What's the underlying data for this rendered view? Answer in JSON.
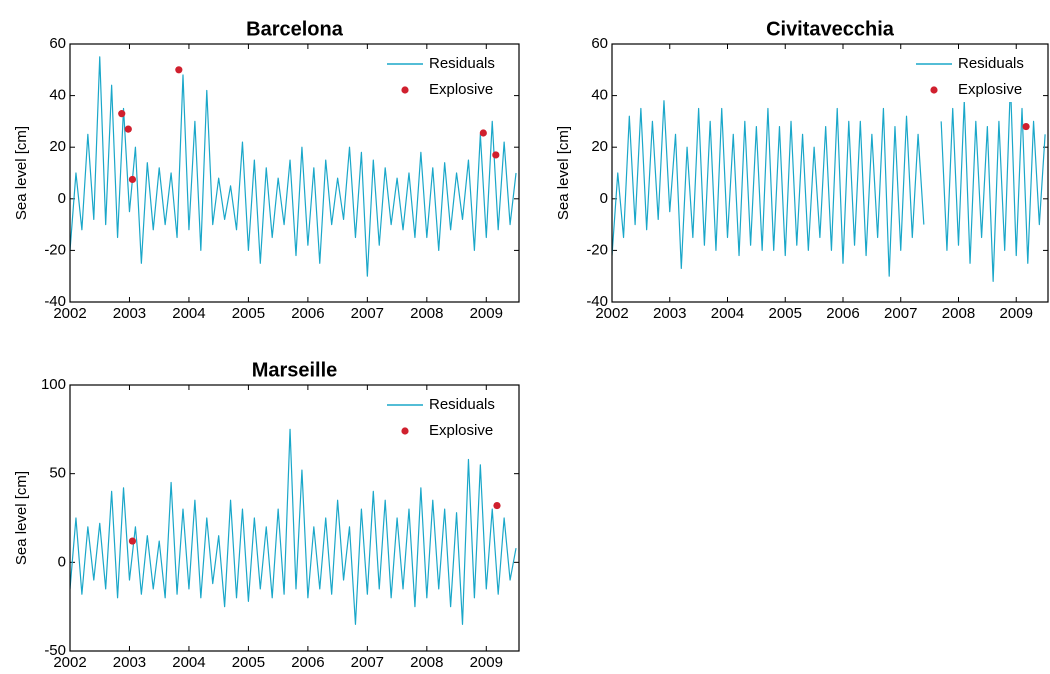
{
  "chart_data": [
    {
      "type": "line",
      "title": "Barcelona",
      "ylabel": "Sea level [cm]",
      "x": [
        2002.0,
        2002.1,
        2002.2,
        2002.3,
        2002.4,
        2002.5,
        2002.6,
        2002.7,
        2002.8,
        2002.9,
        2003.0,
        2003.1,
        2003.2,
        2003.3,
        2003.4,
        2003.5,
        2003.6,
        2003.7,
        2003.8,
        2003.9,
        2004.0,
        2004.1,
        2004.2,
        2004.3,
        2004.4,
        2004.5,
        2004.6,
        2004.7,
        2004.8,
        2004.9,
        2005.0,
        2005.1,
        2005.2,
        2005.3,
        2005.4,
        2005.5,
        2005.6,
        2005.7,
        2005.8,
        2005.9,
        2006.0,
        2006.1,
        2006.2,
        2006.3,
        2006.4,
        2006.5,
        2006.6,
        2006.7,
        2006.8,
        2006.9,
        2007.0,
        2007.1,
        2007.2,
        2007.3,
        2007.4,
        2007.5,
        2007.6,
        2007.7,
        2007.8,
        2007.9,
        2008.0,
        2008.1,
        2008.2,
        2008.3,
        2008.4,
        2008.5,
        2008.6,
        2008.7,
        2008.8,
        2008.9,
        2009.0,
        2009.1,
        2009.2,
        2009.3,
        2009.4,
        2009.5
      ],
      "series": [
        {
          "name": "Residuals",
          "type": "line",
          "color": "#1aa7c9",
          "values": [
            -20,
            10,
            -12,
            25,
            -8,
            55,
            -10,
            44,
            -15,
            35,
            -5,
            20,
            -25,
            14,
            -12,
            12,
            -10,
            10,
            -15,
            48,
            -12,
            30,
            -20,
            42,
            -10,
            8,
            -8,
            5,
            -12,
            22,
            -20,
            15,
            -25,
            12,
            -15,
            8,
            -10,
            15,
            -22,
            20,
            -18,
            12,
            -25,
            15,
            -10,
            8,
            -8,
            20,
            -15,
            18,
            -30,
            15,
            -18,
            12,
            -10,
            8,
            -12,
            10,
            -15,
            18,
            -15,
            12,
            -20,
            14,
            -12,
            10,
            -8,
            15,
            -20,
            25,
            -15,
            30,
            -12,
            22,
            -10,
            10
          ]
        },
        {
          "name": "Explosive",
          "type": "scatter",
          "color": "#d0202e",
          "x": [
            2002.87,
            2002.98,
            2003.05,
            2003.83,
            2008.95,
            2009.16
          ],
          "values": [
            33,
            27,
            7.5,
            50,
            25.5,
            17
          ]
        }
      ],
      "xlim": [
        2002,
        2009.55
      ],
      "xticks": [
        2002,
        2003,
        2004,
        2005,
        2006,
        2007,
        2008,
        2009
      ],
      "ylim": [
        -40,
        60
      ],
      "yticks": [
        -40,
        -20,
        0,
        20,
        40,
        60
      ],
      "legend": "upper right"
    },
    {
      "type": "line",
      "title": "Civitavecchia",
      "ylabel": "Sea level [cm]",
      "x": [
        2002.0,
        2002.1,
        2002.2,
        2002.3,
        2002.4,
        2002.5,
        2002.6,
        2002.7,
        2002.8,
        2002.9,
        2003.0,
        2003.1,
        2003.2,
        2003.3,
        2003.4,
        2003.5,
        2003.6,
        2003.7,
        2003.8,
        2003.9,
        2004.0,
        2004.1,
        2004.2,
        2004.3,
        2004.4,
        2004.5,
        2004.6,
        2004.7,
        2004.8,
        2004.9,
        2005.0,
        2005.1,
        2005.2,
        2005.3,
        2005.4,
        2005.5,
        2005.6,
        2005.7,
        2005.8,
        2005.9,
        2006.0,
        2006.1,
        2006.2,
        2006.3,
        2006.4,
        2006.5,
        2006.6,
        2006.7,
        2006.8,
        2006.9,
        2007.0,
        2007.1,
        2007.2,
        2007.3,
        2007.4,
        2007.5,
        2007.6,
        2007.7,
        2007.8,
        2007.9,
        2008.0,
        2008.1,
        2008.2,
        2008.3,
        2008.4,
        2008.5,
        2008.6,
        2008.7,
        2008.8,
        2008.9,
        2009.0,
        2009.1,
        2009.2,
        2009.3,
        2009.4,
        2009.5
      ],
      "series": [
        {
          "name": "Residuals",
          "type": "line",
          "color": "#1aa7c9",
          "values": [
            -22,
            10,
            -15,
            32,
            -10,
            35,
            -12,
            30,
            -8,
            38,
            -5,
            25,
            -27,
            20,
            -15,
            35,
            -18,
            30,
            -20,
            35,
            -15,
            25,
            -22,
            30,
            -18,
            28,
            -20,
            35,
            -20,
            28,
            -22,
            30,
            -18,
            25,
            -20,
            20,
            -15,
            28,
            -20,
            35,
            -25,
            30,
            -18,
            30,
            -22,
            25,
            -15,
            35,
            -30,
            28,
            -20,
            32,
            -15,
            25,
            -10,
            null,
            null,
            30,
            -20,
            35,
            -18,
            38,
            -25,
            30,
            -15,
            28,
            -32,
            30,
            -20,
            45,
            -22,
            35,
            -25,
            30,
            -10,
            25
          ]
        },
        {
          "name": "Explosive",
          "type": "scatter",
          "color": "#d0202e",
          "x": [
            2009.17
          ],
          "values": [
            28
          ]
        }
      ],
      "xlim": [
        2002,
        2009.55
      ],
      "xticks": [
        2002,
        2003,
        2004,
        2005,
        2006,
        2007,
        2008,
        2009
      ],
      "ylim": [
        -40,
        60
      ],
      "yticks": [
        -40,
        -20,
        0,
        20,
        40,
        60
      ],
      "legend": "upper right"
    },
    {
      "type": "line",
      "title": "Marseille",
      "ylabel": "Sea level [cm]",
      "x": [
        2002.0,
        2002.1,
        2002.2,
        2002.3,
        2002.4,
        2002.5,
        2002.6,
        2002.7,
        2002.8,
        2002.9,
        2003.0,
        2003.1,
        2003.2,
        2003.3,
        2003.4,
        2003.5,
        2003.6,
        2003.7,
        2003.8,
        2003.9,
        2004.0,
        2004.1,
        2004.2,
        2004.3,
        2004.4,
        2004.5,
        2004.6,
        2004.7,
        2004.8,
        2004.9,
        2005.0,
        2005.1,
        2005.2,
        2005.3,
        2005.4,
        2005.5,
        2005.6,
        2005.7,
        2005.8,
        2005.9,
        2006.0,
        2006.1,
        2006.2,
        2006.3,
        2006.4,
        2006.5,
        2006.6,
        2006.7,
        2006.8,
        2006.9,
        2007.0,
        2007.1,
        2007.2,
        2007.3,
        2007.4,
        2007.5,
        2007.6,
        2007.7,
        2007.8,
        2007.9,
        2008.0,
        2008.1,
        2008.2,
        2008.3,
        2008.4,
        2008.5,
        2008.6,
        2008.7,
        2008.8,
        2008.9,
        2009.0,
        2009.1,
        2009.2,
        2009.3,
        2009.4,
        2009.5
      ],
      "series": [
        {
          "name": "Residuals",
          "type": "line",
          "color": "#1aa7c9",
          "values": [
            -15,
            25,
            -18,
            20,
            -10,
            22,
            -15,
            40,
            -20,
            42,
            -10,
            20,
            -18,
            15,
            -15,
            12,
            -20,
            45,
            -18,
            30,
            -15,
            35,
            -20,
            25,
            -12,
            15,
            -25,
            35,
            -20,
            30,
            -22,
            25,
            -15,
            20,
            -20,
            30,
            -18,
            75,
            -15,
            52,
            -20,
            20,
            -15,
            25,
            -18,
            35,
            -10,
            20,
            -35,
            30,
            -18,
            40,
            -15,
            35,
            -20,
            25,
            -15,
            30,
            -25,
            42,
            -20,
            35,
            -15,
            30,
            -25,
            28,
            -35,
            58,
            -20,
            55,
            -15,
            30,
            -18,
            25,
            -10,
            8
          ]
        },
        {
          "name": "Explosive",
          "type": "scatter",
          "color": "#d0202e",
          "x": [
            2003.05,
            2009.18
          ],
          "values": [
            12,
            32
          ]
        }
      ],
      "xlim": [
        2002,
        2009.55
      ],
      "xticks": [
        2002,
        2003,
        2004,
        2005,
        2006,
        2007,
        2008,
        2009
      ],
      "ylim": [
        -50,
        100
      ],
      "yticks": [
        -50,
        0,
        50,
        100
      ],
      "legend": "upper right"
    }
  ]
}
